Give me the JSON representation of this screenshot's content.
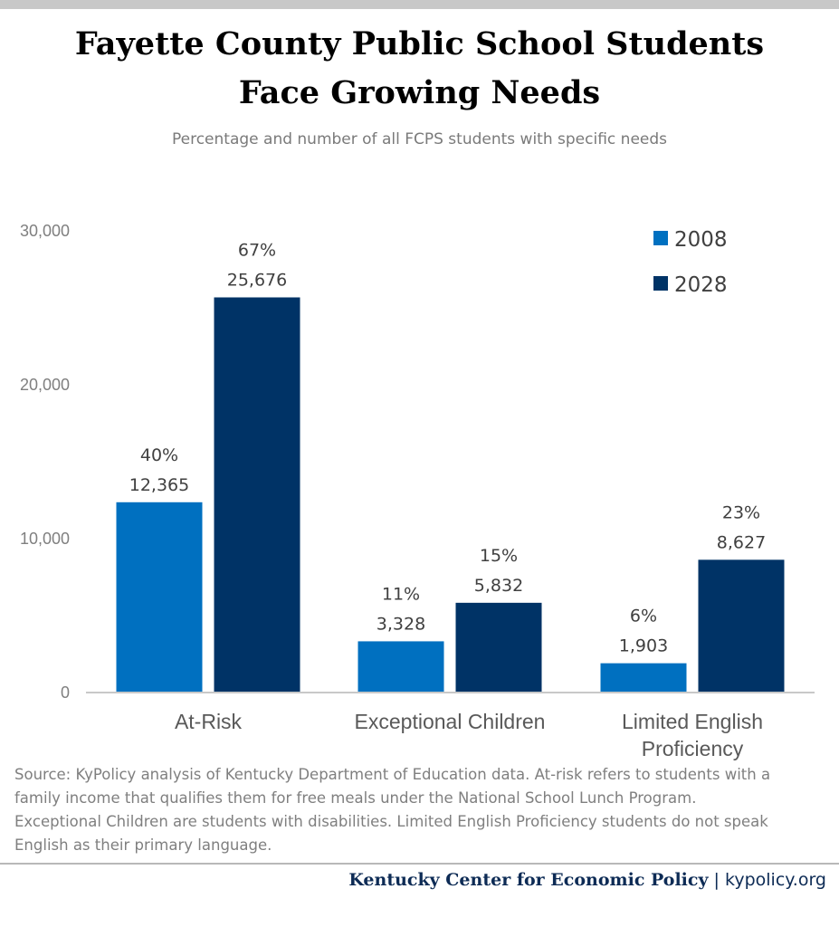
{
  "header": {
    "title_line1": "Fayette County Public School Students",
    "title_line2": "Face Growing Needs",
    "subtitle": "Percentage and number of all FCPS students with specific needs"
  },
  "chart_data": {
    "type": "bar",
    "categories": [
      "At-Risk",
      "Exceptional Children",
      "Limited English Proficiency"
    ],
    "category_lines": [
      [
        "At-Risk"
      ],
      [
        "Exceptional Children"
      ],
      [
        "Limited English",
        "Proficiency"
      ]
    ],
    "series": [
      {
        "name": "2008",
        "color": "#0070c0",
        "values": [
          12365,
          3328,
          1903
        ],
        "value_labels": [
          "12,365",
          "3,328",
          "1,903"
        ],
        "percent_labels": [
          "40%",
          "11%",
          "6%"
        ]
      },
      {
        "name": "2028",
        "color": "#003366",
        "values": [
          25676,
          5832,
          8627
        ],
        "value_labels": [
          "25,676",
          "5,832",
          "8,627"
        ],
        "percent_labels": [
          "67%",
          "15%",
          "23%"
        ]
      }
    ],
    "yticks": [
      0,
      10000,
      20000,
      30000
    ],
    "ytick_labels": [
      "0",
      "10,000",
      "20,000",
      "30,000"
    ],
    "ylim": [
      0,
      30000
    ],
    "xlabel": "",
    "ylabel": "",
    "grid": false,
    "legend": "top-right"
  },
  "source": {
    "text": "Source: KyPolicy analysis of Kentucky Department of Education data. At-risk refers to students with a\nfamily income that qualifies them for free meals under the National School Lunch Program.\nExceptional Children are students with disabilities. Limited English Proficiency students do not speak\nEnglish as their primary language."
  },
  "footer": {
    "org": "Kentucky Center for Economic Policy",
    "separator": " | ",
    "site": "kypolicy.org"
  }
}
